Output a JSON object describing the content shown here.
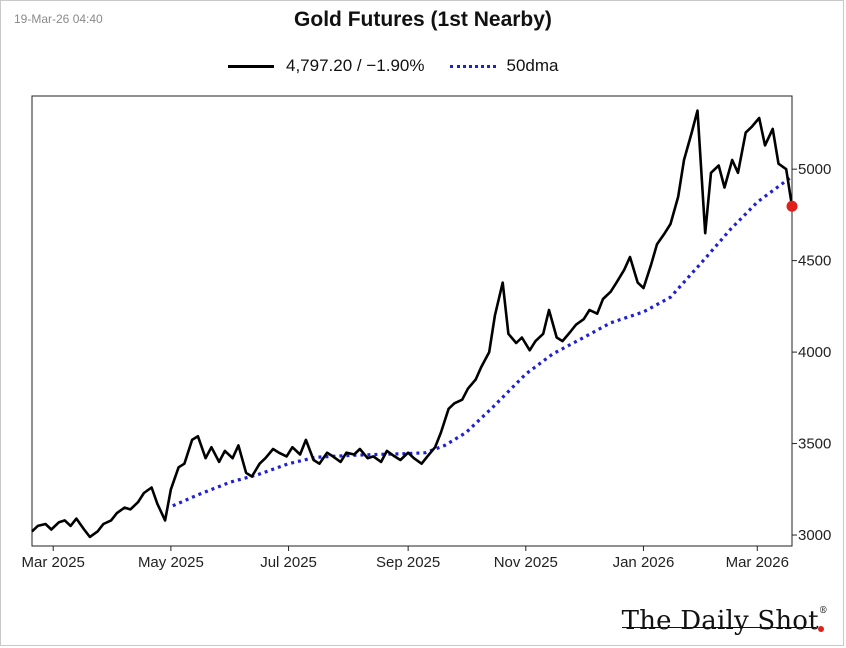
{
  "timestamp": "19-Mar-26 04:40",
  "brand": "The Daily Shot",
  "brand_mark": "®",
  "chart_data": {
    "type": "line",
    "title": "Gold Futures (1st Nearby)",
    "xlabel": "",
    "ylabel": "",
    "x_range": [
      "2025-02-18",
      "2026-03-19"
    ],
    "ylim": [
      2940,
      5400
    ],
    "y_axis_position": "right",
    "y_ticks": [
      3000,
      3500,
      4000,
      4500,
      5000
    ],
    "x_tick_labels": [
      {
        "date": "2025-03-01",
        "label": "Mar 2025"
      },
      {
        "date": "2025-05-01",
        "label": "May 2025"
      },
      {
        "date": "2025-07-01",
        "label": "Jul 2025"
      },
      {
        "date": "2025-09-01",
        "label": "Sep 2025"
      },
      {
        "date": "2025-11-01",
        "label": "Nov 2025"
      },
      {
        "date": "2026-01-01",
        "label": "Jan 2026"
      },
      {
        "date": "2026-03-01",
        "label": "Mar 2026"
      }
    ],
    "grid": false,
    "legend_position": "top-center",
    "colors": {
      "price": "#000000",
      "ma": "#1f1fd6",
      "last_marker": "#e0201b"
    },
    "last_point": {
      "date": "2026-03-19",
      "value": 4797.2
    },
    "series": [
      {
        "name": "4,797.20 / −1.90%",
        "style": "solid",
        "points": [
          [
            "2025-02-18",
            3020
          ],
          [
            "2025-02-21",
            3050
          ],
          [
            "2025-02-25",
            3060
          ],
          [
            "2025-02-28",
            3030
          ],
          [
            "2025-03-04",
            3070
          ],
          [
            "2025-03-07",
            3080
          ],
          [
            "2025-03-10",
            3050
          ],
          [
            "2025-03-13",
            3090
          ],
          [
            "2025-03-17",
            3030
          ],
          [
            "2025-03-20",
            2990
          ],
          [
            "2025-03-24",
            3020
          ],
          [
            "2025-03-27",
            3060
          ],
          [
            "2025-03-31",
            3080
          ],
          [
            "2025-04-03",
            3120
          ],
          [
            "2025-04-07",
            3150
          ],
          [
            "2025-04-10",
            3140
          ],
          [
            "2025-04-14",
            3180
          ],
          [
            "2025-04-17",
            3230
          ],
          [
            "2025-04-21",
            3260
          ],
          [
            "2025-04-24",
            3170
          ],
          [
            "2025-04-28",
            3080
          ],
          [
            "2025-05-01",
            3250
          ],
          [
            "2025-05-05",
            3370
          ],
          [
            "2025-05-08",
            3390
          ],
          [
            "2025-05-12",
            3520
          ],
          [
            "2025-05-15",
            3540
          ],
          [
            "2025-05-19",
            3420
          ],
          [
            "2025-05-22",
            3480
          ],
          [
            "2025-05-26",
            3400
          ],
          [
            "2025-05-29",
            3460
          ],
          [
            "2025-06-02",
            3420
          ],
          [
            "2025-06-05",
            3490
          ],
          [
            "2025-06-09",
            3340
          ],
          [
            "2025-06-12",
            3320
          ],
          [
            "2025-06-16",
            3390
          ],
          [
            "2025-06-19",
            3420
          ],
          [
            "2025-06-23",
            3470
          ],
          [
            "2025-06-26",
            3450
          ],
          [
            "2025-06-30",
            3430
          ],
          [
            "2025-07-03",
            3480
          ],
          [
            "2025-07-07",
            3440
          ],
          [
            "2025-07-10",
            3520
          ],
          [
            "2025-07-14",
            3410
          ],
          [
            "2025-07-17",
            3390
          ],
          [
            "2025-07-21",
            3450
          ],
          [
            "2025-07-24",
            3430
          ],
          [
            "2025-07-28",
            3400
          ],
          [
            "2025-07-31",
            3450
          ],
          [
            "2025-08-04",
            3440
          ],
          [
            "2025-08-07",
            3470
          ],
          [
            "2025-08-11",
            3420
          ],
          [
            "2025-08-14",
            3430
          ],
          [
            "2025-08-18",
            3400
          ],
          [
            "2025-08-21",
            3460
          ],
          [
            "2025-08-25",
            3430
          ],
          [
            "2025-08-28",
            3410
          ],
          [
            "2025-09-01",
            3450
          ],
          [
            "2025-09-04",
            3420
          ],
          [
            "2025-09-08",
            3390
          ],
          [
            "2025-09-11",
            3430
          ],
          [
            "2025-09-15",
            3480
          ],
          [
            "2025-09-18",
            3560
          ],
          [
            "2025-09-22",
            3690
          ],
          [
            "2025-09-25",
            3720
          ],
          [
            "2025-09-29",
            3740
          ],
          [
            "2025-10-02",
            3800
          ],
          [
            "2025-10-06",
            3850
          ],
          [
            "2025-10-09",
            3920
          ],
          [
            "2025-10-13",
            4000
          ],
          [
            "2025-10-16",
            4200
          ],
          [
            "2025-10-20",
            4380
          ],
          [
            "2025-10-23",
            4100
          ],
          [
            "2025-10-27",
            4050
          ],
          [
            "2025-10-30",
            4080
          ],
          [
            "2025-11-03",
            4010
          ],
          [
            "2025-11-06",
            4060
          ],
          [
            "2025-11-10",
            4100
          ],
          [
            "2025-11-13",
            4230
          ],
          [
            "2025-11-17",
            4080
          ],
          [
            "2025-11-20",
            4060
          ],
          [
            "2025-11-24",
            4110
          ],
          [
            "2025-11-27",
            4150
          ],
          [
            "2025-12-01",
            4180
          ],
          [
            "2025-12-04",
            4230
          ],
          [
            "2025-12-08",
            4210
          ],
          [
            "2025-12-11",
            4290
          ],
          [
            "2025-12-15",
            4330
          ],
          [
            "2025-12-18",
            4380
          ],
          [
            "2025-12-22",
            4450
          ],
          [
            "2025-12-25",
            4520
          ],
          [
            "2025-12-29",
            4380
          ],
          [
            "2026-01-01",
            4350
          ],
          [
            "2026-01-05",
            4480
          ],
          [
            "2026-01-08",
            4590
          ],
          [
            "2026-01-12",
            4650
          ],
          [
            "2026-01-15",
            4700
          ],
          [
            "2026-01-19",
            4850
          ],
          [
            "2026-01-22",
            5050
          ],
          [
            "2026-01-26",
            5200
          ],
          [
            "2026-01-29",
            5320
          ],
          [
            "2026-02-02",
            4650
          ],
          [
            "2026-02-05",
            4980
          ],
          [
            "2026-02-09",
            5020
          ],
          [
            "2026-02-12",
            4900
          ],
          [
            "2026-02-16",
            5050
          ],
          [
            "2026-02-19",
            4980
          ],
          [
            "2026-02-23",
            5200
          ],
          [
            "2026-02-26",
            5230
          ],
          [
            "2026-03-02",
            5280
          ],
          [
            "2026-03-05",
            5130
          ],
          [
            "2026-03-09",
            5220
          ],
          [
            "2026-03-12",
            5030
          ],
          [
            "2026-03-16",
            5000
          ],
          [
            "2026-03-19",
            4797.2
          ]
        ]
      },
      {
        "name": "50dma",
        "style": "dotted",
        "points": [
          [
            "2025-05-02",
            3160
          ],
          [
            "2025-05-15",
            3220
          ],
          [
            "2025-06-01",
            3290
          ],
          [
            "2025-06-15",
            3330
          ],
          [
            "2025-07-01",
            3390
          ],
          [
            "2025-07-15",
            3425
          ],
          [
            "2025-08-01",
            3435
          ],
          [
            "2025-08-15",
            3440
          ],
          [
            "2025-09-01",
            3445
          ],
          [
            "2025-09-10",
            3450
          ],
          [
            "2025-09-20",
            3490
          ],
          [
            "2025-10-01",
            3560
          ],
          [
            "2025-10-15",
            3700
          ],
          [
            "2025-11-01",
            3880
          ],
          [
            "2025-11-15",
            3990
          ],
          [
            "2025-12-01",
            4080
          ],
          [
            "2025-12-15",
            4160
          ],
          [
            "2026-01-01",
            4220
          ],
          [
            "2026-01-15",
            4300
          ],
          [
            "2026-02-01",
            4500
          ],
          [
            "2026-02-15",
            4670
          ],
          [
            "2026-03-01",
            4820
          ],
          [
            "2026-03-19",
            4960
          ]
        ]
      }
    ]
  }
}
